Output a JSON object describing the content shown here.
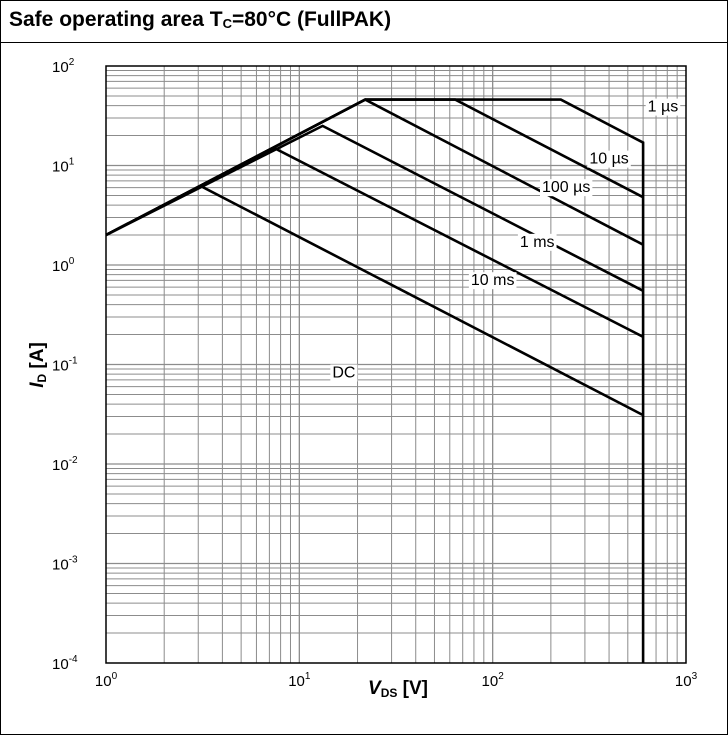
{
  "chart_data": {
    "type": "line",
    "title": "Safe operating area T",
    "title_sub": "C",
    "title_rest": "=80°C (FullPAK)",
    "xlabel": "V",
    "xlabel_sub": "DS",
    "xlabel_unit": " [V]",
    "ylabel": "I",
    "ylabel_sub": "D",
    "ylabel_unit": " [A]",
    "x_scale": "log",
    "y_scale": "log",
    "xlim": [
      1,
      1000
    ],
    "ylim": [
      0.0001,
      100
    ],
    "x_ticks": [
      {
        "base": "10",
        "exp": "0",
        "value": 1
      },
      {
        "base": "10",
        "exp": "1",
        "value": 10
      },
      {
        "base": "10",
        "exp": "2",
        "value": 100
      },
      {
        "base": "10",
        "exp": "3",
        "value": 1000
      }
    ],
    "y_ticks": [
      {
        "base": "10",
        "exp": "2",
        "value": 100
      },
      {
        "base": "10",
        "exp": "1",
        "value": 10
      },
      {
        "base": "10",
        "exp": "0",
        "value": 1
      },
      {
        "base": "10",
        "exp": "-1",
        "value": 0.1
      },
      {
        "base": "10",
        "exp": "-2",
        "value": 0.01
      },
      {
        "base": "10",
        "exp": "-3",
        "value": 0.001
      },
      {
        "base": "10",
        "exp": "-4",
        "value": 0.0001
      }
    ],
    "grid": true,
    "series": [
      {
        "name": "1 µs",
        "points": [
          [
            1,
            2.0
          ],
          [
            21.9,
            46.0
          ],
          [
            225,
            46.0
          ],
          [
            600,
            17.0
          ],
          [
            600,
            0.0001
          ]
        ],
        "label_at": [
          760,
          40
        ]
      },
      {
        "name": "10 µs",
        "points": [
          [
            1,
            2.0
          ],
          [
            21.9,
            46.0
          ],
          [
            64,
            46.0
          ],
          [
            600,
            4.8
          ]
        ],
        "label_at": [
          400,
          12
        ]
      },
      {
        "name": "100 µs",
        "points": [
          [
            1,
            2.0
          ],
          [
            21.9,
            46.0
          ],
          [
            21.9,
            46.0
          ],
          [
            600,
            1.6
          ]
        ],
        "label_at": [
          240,
          6.2
        ]
      },
      {
        "name": "1 ms",
        "points": [
          [
            1,
            2.0
          ],
          [
            13.2,
            25.0
          ],
          [
            600,
            0.55
          ]
        ],
        "label_at": [
          170,
          1.75
        ]
      },
      {
        "name": "10 ms",
        "points": [
          [
            1,
            2.0
          ],
          [
            7.4,
            15.0
          ],
          [
            600,
            0.19
          ]
        ],
        "label_at": [
          100,
          0.72
        ]
      },
      {
        "name": "DC",
        "points": [
          [
            1,
            2.0
          ],
          [
            3.1,
            6.2
          ],
          [
            600,
            0.031
          ]
        ],
        "label_at": [
          17,
          0.085
        ]
      }
    ]
  }
}
